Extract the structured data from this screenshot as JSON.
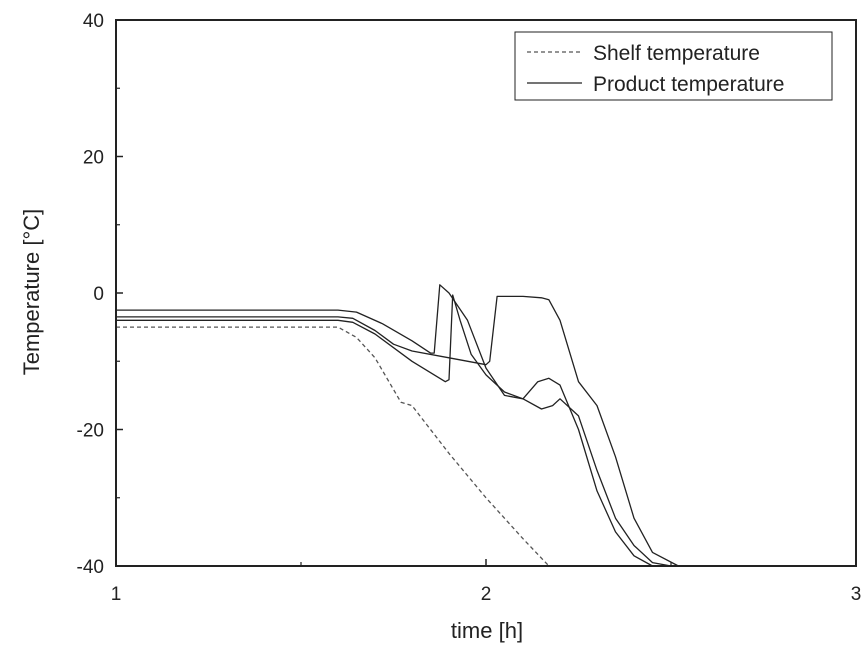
{
  "chart_data": {
    "type": "line",
    "xlabel": "time [h]",
    "ylabel": "Temperature [°C]",
    "xlim": [
      1,
      3
    ],
    "ylim": [
      -40,
      40
    ],
    "xticks": [
      1,
      2,
      3
    ],
    "yticks": [
      -40,
      -20,
      0,
      20,
      40
    ],
    "xtick_labels": [
      "1",
      "2",
      "3"
    ],
    "ytick_labels": [
      "-40",
      "-20",
      "0",
      "20",
      "40"
    ],
    "grid": false,
    "legend": {
      "position": "top-right",
      "entries": [
        {
          "label": "Shelf temperature",
          "style": "dashed"
        },
        {
          "label": "Product temperature",
          "style": "solid"
        }
      ]
    },
    "series": [
      {
        "name": "Shelf temperature",
        "style": "dashed",
        "color": "#555555",
        "x": [
          1.0,
          1.6,
          1.65,
          1.7,
          1.77,
          1.8,
          1.9,
          2.0,
          2.1,
          2.17
        ],
        "y": [
          -5.0,
          -5.0,
          -6.5,
          -9.5,
          -16.0,
          -16.5,
          -23.5,
          -30.0,
          -36.0,
          -40.0
        ]
      },
      {
        "name": "Product temperature",
        "style": "solid",
        "color": "#222222",
        "x": [
          1.0,
          1.6,
          1.64,
          1.7,
          1.8,
          1.89,
          1.9,
          1.91,
          1.93,
          1.96,
          2.0,
          2.05,
          2.1,
          2.15,
          2.18,
          2.2,
          2.25,
          2.3,
          2.35,
          2.4,
          2.45,
          2.5
        ],
        "y": [
          -4.0,
          -4.0,
          -4.3,
          -6.0,
          -10.0,
          -13.0,
          -12.7,
          -0.3,
          -4.0,
          -9.0,
          -12.0,
          -14.5,
          -15.5,
          -17.0,
          -16.5,
          -15.5,
          -18.0,
          -26.0,
          -33.0,
          -37.0,
          -39.5,
          -40.0
        ]
      },
      {
        "name": "Product temperature",
        "style": "solid",
        "color": "#222222",
        "x": [
          1.0,
          1.6,
          1.65,
          1.72,
          1.8,
          1.85,
          1.86,
          1.875,
          1.9,
          1.95,
          2.0,
          2.05,
          2.1,
          2.14,
          2.17,
          2.2,
          2.25,
          2.3,
          2.35,
          2.4,
          2.45
        ],
        "y": [
          -2.5,
          -2.5,
          -2.8,
          -4.5,
          -7.0,
          -8.8,
          -8.8,
          1.2,
          0.0,
          -4.0,
          -11.0,
          -15.0,
          -15.5,
          -13.0,
          -12.5,
          -13.5,
          -20.0,
          -29.0,
          -35.0,
          -38.5,
          -40.0
        ]
      },
      {
        "name": "Product temperature",
        "style": "solid",
        "color": "#222222",
        "x": [
          1.0,
          1.6,
          1.64,
          1.7,
          1.75,
          1.8,
          1.9,
          2.0,
          2.01,
          2.03,
          2.1,
          2.15,
          2.17,
          2.2,
          2.25,
          2.3,
          2.35,
          2.4,
          2.45,
          2.52
        ],
        "y": [
          -3.5,
          -3.5,
          -3.7,
          -5.5,
          -7.5,
          -8.5,
          -9.5,
          -10.5,
          -10.0,
          -0.5,
          -0.5,
          -0.7,
          -1.0,
          -4.0,
          -13.0,
          -16.5,
          -24.0,
          -33.0,
          -38.0,
          -40.0
        ]
      }
    ]
  }
}
